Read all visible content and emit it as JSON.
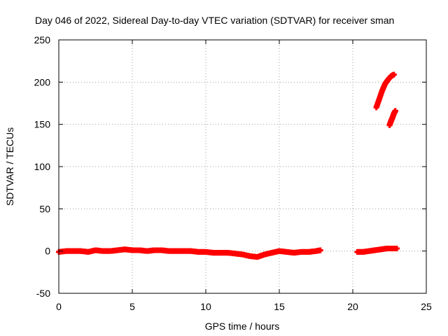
{
  "chart_data": {
    "type": "scatter",
    "title": "Day 046 of 2022, Sidereal Day-to-day VTEC variation (SDTVAR) for receiver sman",
    "xlabel": "GPS time / hours",
    "ylabel": "SDTVAR / TECUs",
    "xlim": [
      0,
      25
    ],
    "ylim": [
      -50,
      250
    ],
    "xticks": [
      0,
      5,
      10,
      15,
      20,
      25
    ],
    "yticks": [
      -50,
      0,
      50,
      100,
      150,
      200,
      250
    ],
    "grid": true,
    "legend": "none",
    "marker": "plus",
    "color": "#ff0000",
    "series": [
      {
        "x": [
          0.0,
          0.5,
          1.0,
          1.5,
          2.0,
          2.5,
          3.0,
          3.5,
          4.0,
          4.5,
          5.0,
          5.5,
          6.0,
          6.5,
          7.0,
          7.5,
          8.0,
          8.5,
          9.0,
          9.5,
          10.0,
          10.5,
          11.0,
          11.5,
          12.0,
          12.5,
          13.0,
          13.5,
          14.0,
          14.5,
          15.0,
          15.5,
          16.0,
          16.5,
          17.0,
          17.5,
          17.8
        ],
        "y": [
          -1,
          0,
          0,
          0,
          -1,
          1,
          0,
          0,
          1,
          2,
          1,
          1,
          0,
          1,
          1,
          0,
          0,
          0,
          0,
          -1,
          -1,
          -2,
          -2,
          -2,
          -3,
          -4,
          -6,
          -7,
          -4,
          -2,
          0,
          -1,
          -2,
          -1,
          -1,
          0,
          1
        ]
      },
      {
        "x": [
          20.3,
          20.7,
          21.1,
          21.5,
          21.9,
          22.3,
          22.7,
          23.0
        ],
        "y": [
          -1,
          -1,
          0,
          1,
          2,
          3,
          3,
          3
        ]
      },
      {
        "x": [
          21.6,
          21.8,
          22.0,
          22.2,
          22.4,
          22.6,
          22.8
        ],
        "y": [
          170,
          180,
          190,
          198,
          203,
          207,
          209
        ]
      },
      {
        "x": [
          22.5,
          22.6,
          22.7,
          22.8,
          22.9
        ],
        "y": [
          149,
          154,
          158,
          163,
          166
        ]
      }
    ]
  }
}
